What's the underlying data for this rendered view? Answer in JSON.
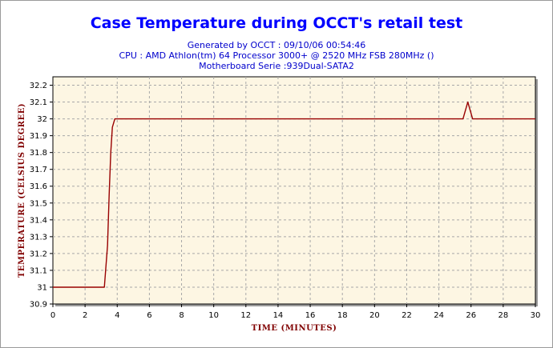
{
  "chart_data": {
    "type": "line",
    "title": "Case Temperature during OCCT's retail test",
    "subtitle_lines": [
      "Generated by OCCT : 09/10/06 00:54:46",
      "CPU : AMD Athlon(tm) 64 Processor 3000+ @ 2520 MHz FSB 280MHz ()",
      "Motherboard Serie :939Dual-SATA2"
    ],
    "xlabel": "Time (minutes)",
    "ylabel": "Temperature (celsius degree)",
    "xlim": [
      0,
      30
    ],
    "ylim": [
      30.9,
      32.25
    ],
    "x_ticks": [
      0,
      2,
      4,
      6,
      8,
      10,
      12,
      14,
      16,
      18,
      20,
      22,
      24,
      26,
      28,
      30
    ],
    "y_ticks": [
      30.9,
      31,
      31.1,
      31.2,
      31.3,
      31.4,
      31.5,
      31.6,
      31.7,
      31.8,
      31.9,
      32,
      32.1,
      32.2
    ],
    "y_tick_labels": [
      "30.9",
      "31",
      "31.1",
      "31.2",
      "31.3",
      "31.4",
      "31.5",
      "31.6",
      "31.7",
      "31.8",
      "31.9",
      "32",
      "32.1",
      "32.2"
    ],
    "grid": true,
    "series": [
      {
        "color": "#990000",
        "x": [
          0,
          3.2,
          3.4,
          3.5,
          3.6,
          3.7,
          3.85,
          4.0,
          25.5,
          25.65,
          25.8,
          25.95,
          26.1,
          26.3,
          30
        ],
        "y": [
          31.0,
          31.0,
          31.25,
          31.55,
          31.8,
          31.95,
          32.0,
          32.0,
          32.0,
          32.05,
          32.1,
          32.05,
          32.0,
          32.0,
          32.0
        ]
      }
    ],
    "colors": {
      "plot_background": "#fdf6e3",
      "grid": "#a8a8a8",
      "title": "#0000ff",
      "subtitle": "#0000cc",
      "axis_title": "#800000"
    }
  }
}
